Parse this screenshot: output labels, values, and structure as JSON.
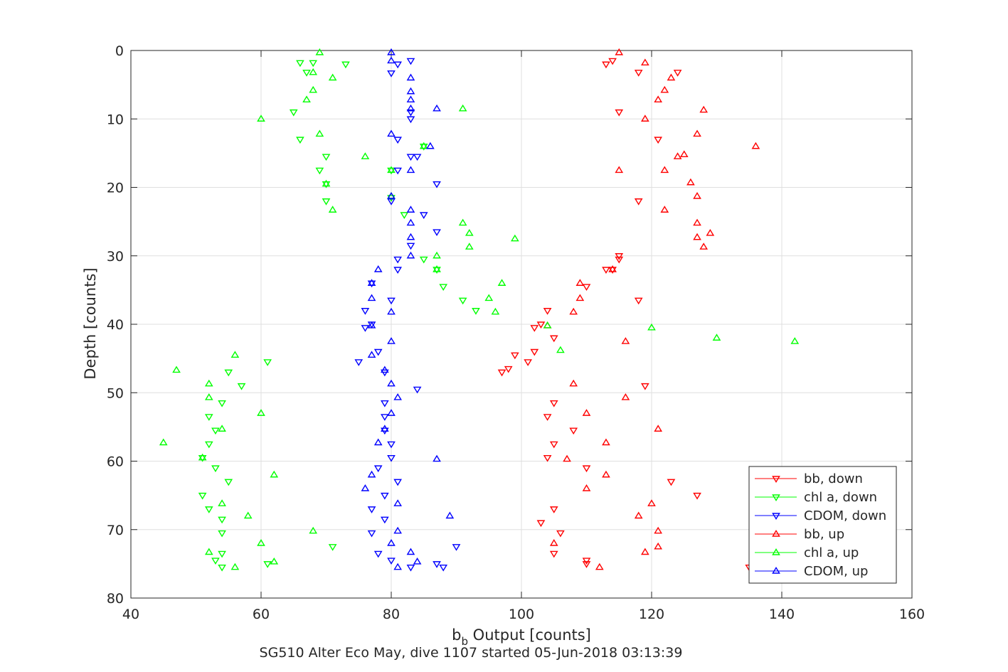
{
  "figure": {
    "xlabel_main": "b",
    "xlabel_sub": "b",
    "xlabel_rest": " Output [counts]",
    "ylabel": "Depth [counts]",
    "caption": "SG510 Alter Eco May, dive 1107 started 05-Jun-2018 03:13:39"
  },
  "chart_data": {
    "type": "scatter",
    "title": "",
    "xlabel": "b_b Output [counts]",
    "ylabel": "Depth [counts]",
    "xlim": [
      40,
      160
    ],
    "ylim": [
      0,
      80
    ],
    "y_reversed": true,
    "grid": true,
    "legend_position": "bottom-right",
    "xticks": [
      40,
      60,
      80,
      100,
      120,
      140,
      160
    ],
    "yticks": [
      0,
      10,
      20,
      30,
      40,
      50,
      60,
      70,
      80
    ],
    "series": [
      {
        "name": "bb, down",
        "color": "#ff0000",
        "marker": "triangle-down",
        "points": [
          [
            113,
            2
          ],
          [
            114,
            1.5
          ],
          [
            118,
            3.2
          ],
          [
            124,
            3.2
          ],
          [
            115,
            9
          ],
          [
            121,
            13
          ],
          [
            113,
            32
          ],
          [
            114,
            32
          ],
          [
            115,
            30.5
          ],
          [
            115,
            30
          ],
          [
            118,
            36.5
          ],
          [
            118,
            22
          ],
          [
            110,
            34.5
          ],
          [
            104,
            38
          ],
          [
            102,
            40.5
          ],
          [
            103,
            40
          ],
          [
            105,
            42
          ],
          [
            102,
            44
          ],
          [
            99,
            44.5
          ],
          [
            101,
            45.5
          ],
          [
            98,
            46.5
          ],
          [
            97,
            47
          ],
          [
            105,
            51.5
          ],
          [
            104,
            53.5
          ],
          [
            108,
            55.5
          ],
          [
            105,
            57.5
          ],
          [
            104,
            59.5
          ],
          [
            110,
            61
          ],
          [
            123,
            63
          ],
          [
            127,
            65
          ],
          [
            105,
            67
          ],
          [
            103,
            69
          ],
          [
            106,
            70.5
          ],
          [
            105,
            73.5
          ],
          [
            110,
            74.5
          ],
          [
            110,
            75
          ],
          [
            119,
            49
          ],
          [
            135,
            75.5
          ]
        ]
      },
      {
        "name": "chl a, down",
        "color": "#00ff00",
        "marker": "triangle-down",
        "points": [
          [
            66,
            1.8
          ],
          [
            68,
            1.8
          ],
          [
            73,
            2
          ],
          [
            67,
            3.2
          ],
          [
            65,
            9
          ],
          [
            66,
            13
          ],
          [
            70,
            15.5
          ],
          [
            69,
            17.5
          ],
          [
            70,
            19.5
          ],
          [
            70,
            22
          ],
          [
            82,
            24
          ],
          [
            85,
            30.5
          ],
          [
            87,
            32
          ],
          [
            88,
            34.5
          ],
          [
            91,
            36.5
          ],
          [
            93,
            38
          ],
          [
            85,
            14
          ],
          [
            80,
            17.5
          ],
          [
            80,
            21.5
          ],
          [
            61,
            45.5
          ],
          [
            54,
            51.5
          ],
          [
            52,
            53.5
          ],
          [
            53,
            55.5
          ],
          [
            52,
            57.5
          ],
          [
            51,
            59.5
          ],
          [
            53,
            61
          ],
          [
            55,
            63
          ],
          [
            51,
            65
          ],
          [
            52,
            67
          ],
          [
            54,
            68.5
          ],
          [
            54,
            70.5
          ],
          [
            71,
            72.5
          ],
          [
            54,
            73.5
          ],
          [
            53,
            74.5
          ],
          [
            54,
            75.5
          ],
          [
            61,
            75
          ],
          [
            55,
            47
          ],
          [
            57,
            49
          ]
        ]
      },
      {
        "name": "CDOM, down",
        "color": "#0000ff",
        "marker": "triangle-down",
        "points": [
          [
            81,
            2
          ],
          [
            80,
            3.3
          ],
          [
            83,
            1.5
          ],
          [
            83,
            9
          ],
          [
            83,
            10
          ],
          [
            81,
            13
          ],
          [
            83,
            15.5
          ],
          [
            84,
            15.5
          ],
          [
            81,
            17.5
          ],
          [
            87,
            19.5
          ],
          [
            80,
            22
          ],
          [
            85,
            24
          ],
          [
            87,
            26.5
          ],
          [
            83,
            28.5
          ],
          [
            81,
            30.5
          ],
          [
            81,
            32
          ],
          [
            77,
            34
          ],
          [
            80,
            36.5
          ],
          [
            76,
            38
          ],
          [
            77,
            40
          ],
          [
            76,
            40.5
          ],
          [
            78,
            44
          ],
          [
            75,
            45.5
          ],
          [
            79,
            47
          ],
          [
            84,
            49.5
          ],
          [
            79,
            51.5
          ],
          [
            79,
            53.5
          ],
          [
            79,
            55.5
          ],
          [
            80,
            57.5
          ],
          [
            80,
            59.5
          ],
          [
            78,
            61
          ],
          [
            81,
            63
          ],
          [
            79,
            65
          ],
          [
            77,
            67
          ],
          [
            79,
            68.5
          ],
          [
            77,
            70.5
          ],
          [
            90,
            72.5
          ],
          [
            78,
            73.5
          ],
          [
            80,
            74.5
          ],
          [
            87,
            75
          ],
          [
            88,
            75.5
          ],
          [
            83,
            75.5
          ]
        ]
      },
      {
        "name": "bb, up",
        "color": "#ff0000",
        "marker": "triangle-up",
        "points": [
          [
            115,
            0.3
          ],
          [
            119,
            1.8
          ],
          [
            123,
            4
          ],
          [
            122,
            5.8
          ],
          [
            121,
            7.2
          ],
          [
            128,
            8.7
          ],
          [
            119,
            10
          ],
          [
            127,
            12.2
          ],
          [
            136,
            14
          ],
          [
            125,
            15.2
          ],
          [
            124,
            15.5
          ],
          [
            122,
            17.5
          ],
          [
            115,
            17.5
          ],
          [
            126,
            19.3
          ],
          [
            127,
            21.3
          ],
          [
            122,
            23.3
          ],
          [
            127,
            25.2
          ],
          [
            127,
            27.3
          ],
          [
            129,
            26.7
          ],
          [
            128,
            28.7
          ],
          [
            114,
            32
          ],
          [
            109,
            34
          ],
          [
            109,
            36.2
          ],
          [
            108,
            38.2
          ],
          [
            104,
            40.2
          ],
          [
            116,
            42.5
          ],
          [
            108,
            48.7
          ],
          [
            116,
            50.7
          ],
          [
            110,
            53
          ],
          [
            121,
            55.3
          ],
          [
            113,
            57.3
          ],
          [
            107,
            59.7
          ],
          [
            113,
            62
          ],
          [
            110,
            64
          ],
          [
            120,
            66.2
          ],
          [
            118,
            68
          ],
          [
            121,
            70.2
          ],
          [
            105,
            72
          ],
          [
            119,
            73.3
          ],
          [
            121,
            72.5
          ],
          [
            112,
            75.5
          ]
        ]
      },
      {
        "name": "chl a, up",
        "color": "#00ff00",
        "marker": "triangle-up",
        "points": [
          [
            69,
            0.3
          ],
          [
            68,
            3.2
          ],
          [
            71,
            4
          ],
          [
            68,
            5.8
          ],
          [
            67,
            7.2
          ],
          [
            91,
            8.5
          ],
          [
            60,
            10
          ],
          [
            69,
            12.2
          ],
          [
            76,
            15.5
          ],
          [
            85,
            14
          ],
          [
            80,
            17.5
          ],
          [
            70,
            19.5
          ],
          [
            80,
            21.3
          ],
          [
            71,
            23.3
          ],
          [
            91,
            25.2
          ],
          [
            92,
            26.7
          ],
          [
            99,
            27.5
          ],
          [
            92,
            28.7
          ],
          [
            87,
            30
          ],
          [
            87,
            32
          ],
          [
            97,
            34
          ],
          [
            95,
            36.2
          ],
          [
            96,
            38.2
          ],
          [
            104,
            40.2
          ],
          [
            120,
            40.5
          ],
          [
            130,
            42
          ],
          [
            142,
            42.5
          ],
          [
            106,
            43.8
          ],
          [
            56,
            44.5
          ],
          [
            47,
            46.7
          ],
          [
            52,
            48.7
          ],
          [
            52,
            50.7
          ],
          [
            60,
            53
          ],
          [
            54,
            55.3
          ],
          [
            45,
            57.3
          ],
          [
            51,
            59.5
          ],
          [
            62,
            62
          ],
          [
            54,
            66.2
          ],
          [
            58,
            68
          ],
          [
            68,
            70.2
          ],
          [
            60,
            72
          ],
          [
            52,
            73.3
          ],
          [
            62,
            74.7
          ],
          [
            56,
            75.5
          ]
        ]
      },
      {
        "name": "CDOM, up",
        "color": "#0000ff",
        "marker": "triangle-up",
        "points": [
          [
            80,
            0.3
          ],
          [
            80,
            1.5
          ],
          [
            83,
            4
          ],
          [
            83,
            6
          ],
          [
            83,
            7.2
          ],
          [
            83,
            8.5
          ],
          [
            87,
            8.5
          ],
          [
            80,
            12.2
          ],
          [
            86,
            14
          ],
          [
            83,
            17.5
          ],
          [
            80,
            21.3
          ],
          [
            83,
            23.3
          ],
          [
            83,
            25.2
          ],
          [
            83,
            27.3
          ],
          [
            83,
            30
          ],
          [
            78,
            32
          ],
          [
            77,
            34
          ],
          [
            77,
            36.2
          ],
          [
            80,
            38.2
          ],
          [
            77,
            40.2
          ],
          [
            80,
            42.5
          ],
          [
            77,
            44.5
          ],
          [
            79,
            46.7
          ],
          [
            80,
            48.7
          ],
          [
            81,
            50.7
          ],
          [
            80,
            53
          ],
          [
            79,
            55.3
          ],
          [
            78,
            57.3
          ],
          [
            87,
            59.7
          ],
          [
            77,
            62
          ],
          [
            76,
            64
          ],
          [
            81,
            66.2
          ],
          [
            89,
            68
          ],
          [
            81,
            70.2
          ],
          [
            80,
            72
          ],
          [
            83,
            73.3
          ],
          [
            84,
            74.7
          ],
          [
            81,
            75.5
          ]
        ]
      }
    ]
  }
}
